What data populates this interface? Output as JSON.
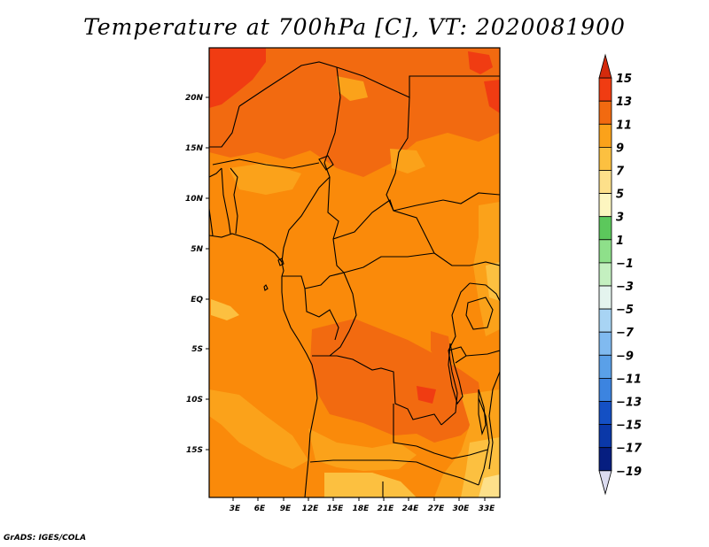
{
  "title": "Temperature at 700hPa [C], VT: 2020081900",
  "credit": "GrADS: IGES/COLA",
  "map": {
    "variable": "Temperature",
    "level": "700hPa",
    "units": "C",
    "valid_time": "2020081900",
    "lat_ticks": [
      "20N",
      "15N",
      "10N",
      "5N",
      "EQ",
      "5S",
      "10S",
      "15S"
    ],
    "lon_ticks": [
      "3E",
      "6E",
      "9E",
      "12E",
      "15E",
      "18E",
      "21E",
      "24E",
      "27E",
      "30E",
      "33E"
    ]
  },
  "colorbar": {
    "levels": [
      "15",
      "13",
      "11",
      "9",
      "7",
      "5",
      "3",
      "1",
      "−1",
      "−3",
      "−5",
      "−7",
      "−9",
      "−11",
      "−13",
      "−15",
      "−17",
      "−19"
    ],
    "colors": [
      "#d42a0c",
      "#f03c12",
      "#f26a10",
      "#fa8a0a",
      "#fba21a",
      "#fcc040",
      "#fde08a",
      "#fdf6c0",
      "#2fae3c",
      "#5cc85c",
      "#8ee08a",
      "#c4f0c0",
      "#e4f4ee",
      "#cce6f6",
      "#a8d4f4",
      "#80baf0",
      "#5aa0e8",
      "#3c84e0",
      "#2468d6",
      "#1450c4",
      "#0a38a8",
      "#061e80",
      "#dcdcf0"
    ]
  },
  "palette": {
    "t9_11": "#fba21a",
    "t11_13": "#f26a10",
    "t13_15": "#f03c12",
    "t7_9": "#fcc040",
    "t5_7": "#fde08a"
  }
}
